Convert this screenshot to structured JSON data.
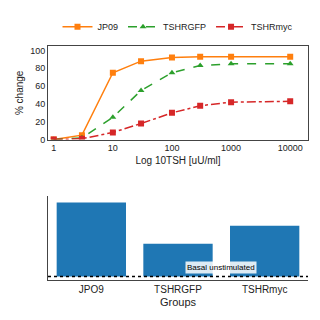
{
  "chart_data": [
    {
      "type": "bar",
      "categories": [
        "JPO9",
        "TSHRGFP",
        "TSHRmyc"
      ],
      "values": [
        9.5,
        4.2,
        6.5
      ],
      "baseline": {
        "value": 0.15,
        "label": "Basal unstimulated",
        "line_style": "dot"
      },
      "xlabel": "Groups",
      "ylim": [
        -0.3,
        10.5
      ],
      "yticks": [],
      "tick_labels": "x",
      "grid": false
    },
    {
      "type": "line",
      "x": [
        1,
        3,
        10,
        30,
        100,
        300,
        1000,
        10000
      ],
      "series": [
        {
          "name": "JP09",
          "values": [
            0,
            5,
            75,
            88,
            92,
            93,
            93,
            93
          ],
          "marker": "square",
          "line_style": "solid"
        },
        {
          "name": "TSHRGFP",
          "values": [
            0,
            2,
            25,
            55,
            75,
            83,
            85,
            85
          ],
          "marker": "triangle-up",
          "line_style": "dash"
        },
        {
          "name": "TSHRmyc",
          "values": [
            0,
            1,
            8,
            18,
            30,
            38,
            42,
            43
          ],
          "marker": "square",
          "line_style": "dashdot"
        }
      ],
      "xlabel": "Log 10TSH [uU/ml]",
      "ylabel": "% change",
      "log": "x",
      "xlim": [
        0.8,
        20000
      ],
      "xticks": [
        1,
        10,
        100,
        1000,
        10000
      ],
      "ylim": [
        0,
        105
      ],
      "yticks": [
        0,
        20,
        40,
        60,
        80,
        100
      ],
      "legend": "top",
      "grid": false
    }
  ]
}
